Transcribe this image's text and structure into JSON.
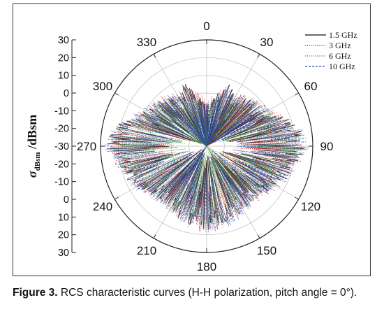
{
  "chart_data": {
    "type": "polar-line",
    "title": "",
    "ylabel_symbol": "σ",
    "ylabel_sub": "dBsm",
    "ylabel_unit": "/dBsm",
    "radial_ticks": [
      "30",
      "20",
      "10",
      "0",
      "-10",
      "-20",
      "-30",
      "-20",
      "-10",
      "0",
      "10",
      "20",
      "30"
    ],
    "radial_range": [
      -30,
      30
    ],
    "angle_ticks": [
      "0",
      "30",
      "60",
      "90",
      "120",
      "150",
      "180",
      "210",
      "240",
      "270",
      "300",
      "330"
    ],
    "grid": true,
    "legend_position": "top-right",
    "series": [
      {
        "name": "1.5 GHz",
        "color": "#111111",
        "style": "solid",
        "envelope_deg": [
          0,
          10,
          20,
          30,
          40,
          50,
          60,
          70,
          80,
          90,
          100,
          110,
          120,
          130,
          140,
          150,
          160,
          170,
          180
        ],
        "envelope_dbsm": [
          -6,
          0,
          8,
          2,
          6,
          8,
          10,
          18,
          24,
          28,
          22,
          20,
          16,
          12,
          10,
          12,
          14,
          16,
          18
        ]
      },
      {
        "name": "3 GHz",
        "color": "#d42020",
        "style": "dotted",
        "envelope_deg": [
          0,
          10,
          20,
          30,
          40,
          50,
          60,
          70,
          80,
          90,
          100,
          110,
          120,
          130,
          140,
          150,
          160,
          170,
          180
        ],
        "envelope_dbsm": [
          -4,
          2,
          6,
          4,
          8,
          10,
          12,
          18,
          24,
          27,
          24,
          20,
          18,
          14,
          12,
          14,
          15,
          18,
          20
        ]
      },
      {
        "name": "6 GHz",
        "color": "#2f9e3a",
        "style": "dotted",
        "envelope_deg": [
          0,
          10,
          20,
          30,
          40,
          50,
          60,
          70,
          80,
          90,
          100,
          110,
          120,
          130,
          140,
          150,
          160,
          170,
          180
        ],
        "envelope_dbsm": [
          -8,
          -2,
          4,
          2,
          6,
          8,
          10,
          16,
          22,
          26,
          22,
          18,
          16,
          12,
          10,
          12,
          13,
          15,
          17
        ]
      },
      {
        "name": "10 GHz",
        "color": "#2848b8",
        "style": "dashed",
        "envelope_deg": [
          0,
          10,
          20,
          30,
          40,
          50,
          60,
          70,
          80,
          90,
          100,
          110,
          120,
          130,
          140,
          150,
          160,
          170,
          180
        ],
        "envelope_dbsm": [
          -6,
          0,
          6,
          4,
          8,
          10,
          12,
          18,
          25,
          29,
          24,
          20,
          18,
          14,
          12,
          14,
          16,
          18,
          20
        ]
      }
    ]
  },
  "caption": {
    "label": "Figure 3.",
    "text": " RCS characteristic curves (H-H polarization, pitch angle = 0°)."
  }
}
